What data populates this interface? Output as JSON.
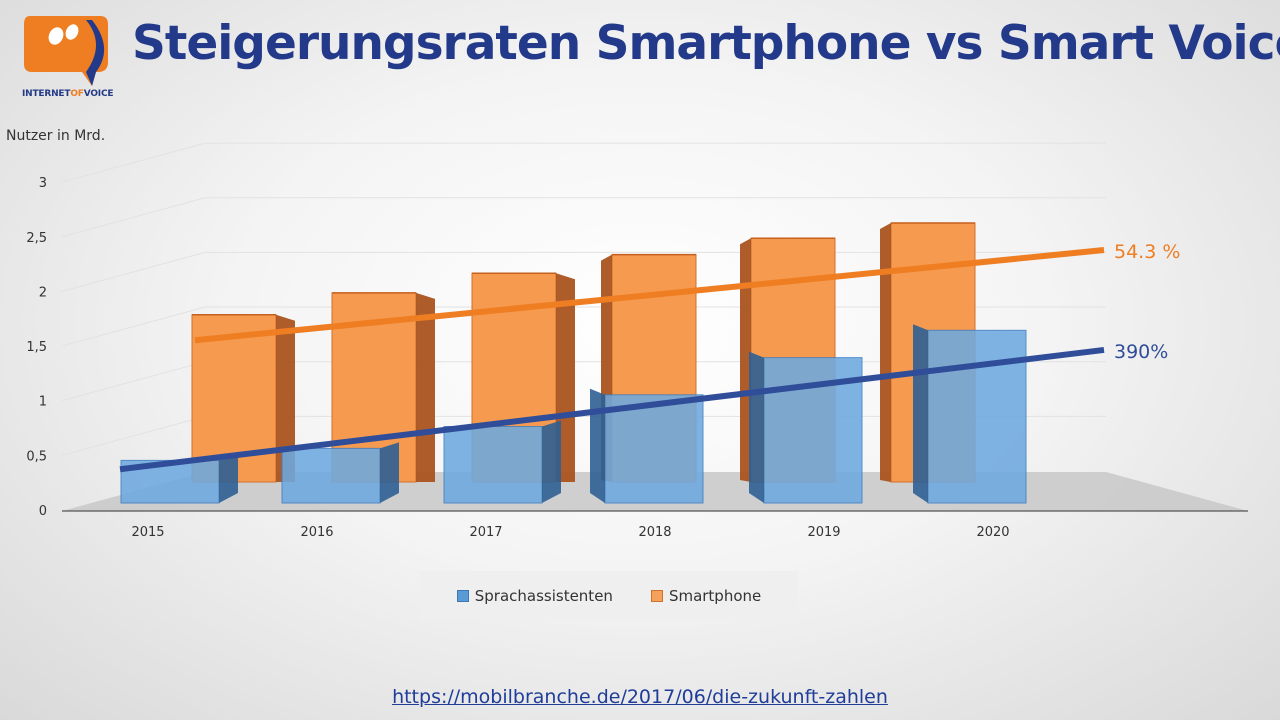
{
  "header": {
    "title": "Steigerungsraten Smartphone vs Smart Voice",
    "logo_text_a": "INTERNET",
    "logo_text_b": "OF",
    "logo_text_c": "VOICE"
  },
  "colors": {
    "orange": "#ef7d22",
    "blue": "#2f4d99",
    "bar_blue": "#5b9bd5",
    "title_blue": "#23398a"
  },
  "chart_data": {
    "type": "bar",
    "title": "Steigerungsraten Smartphone vs Smart Voice",
    "ylabel": "Nutzer in Mrd.",
    "xlabel": "",
    "ylim": [
      0,
      3
    ],
    "yticks": [
      "0",
      "0,5",
      "1",
      "1,5",
      "2",
      "2,5",
      "3"
    ],
    "ytick_values": [
      0,
      0.5,
      1,
      1.5,
      2,
      2.5,
      3
    ],
    "categories": [
      "2015",
      "2016",
      "2017",
      "2018",
      "2019",
      "2020"
    ],
    "series": [
      {
        "name": "Sprachassistenten",
        "values": [
          0.39,
          0.5,
          0.7,
          0.99,
          1.33,
          1.58
        ]
      },
      {
        "name": "Smartphone",
        "values": [
          1.53,
          1.73,
          1.91,
          2.08,
          2.23,
          2.37
        ]
      }
    ],
    "trendlines": [
      {
        "series": "Smartphone",
        "label": "54.3 %",
        "start": 1.75,
        "end": 2.68
      },
      {
        "series": "Sprachassistenten",
        "label": "390%",
        "start": 0.42,
        "end": 1.65
      }
    ],
    "legend": [
      "Sprachassistenten",
      "Smartphone"
    ]
  },
  "footer": {
    "source": "https://mobilbranche.de/2017/06/die-zukunft-zahlen"
  }
}
